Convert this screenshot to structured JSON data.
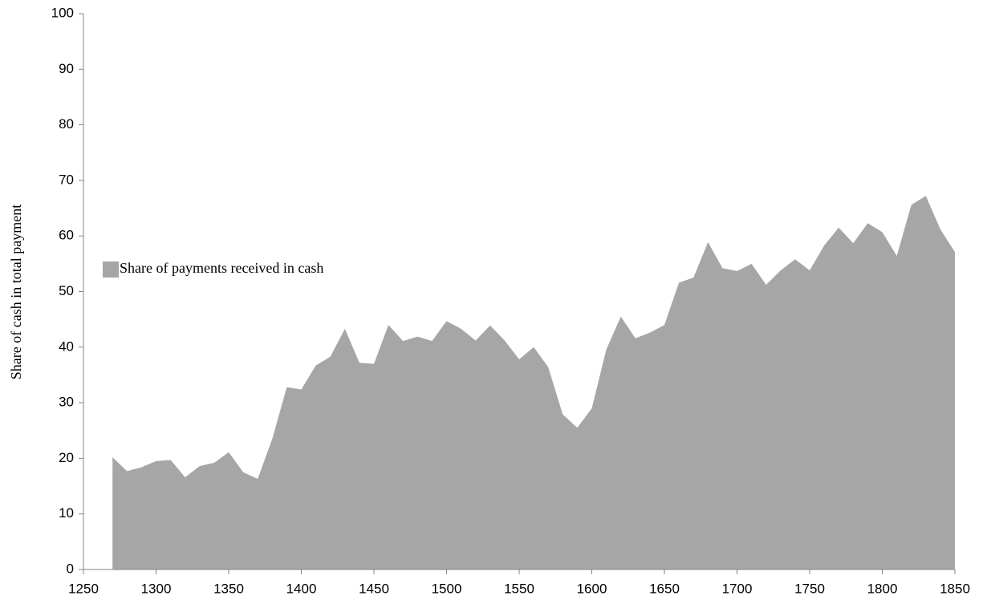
{
  "chart_data": {
    "type": "area",
    "y_label": "Share of cash in total payment",
    "x": [
      1270,
      1280,
      1290,
      1300,
      1310,
      1320,
      1330,
      1340,
      1350,
      1360,
      1370,
      1380,
      1390,
      1400,
      1410,
      1420,
      1430,
      1440,
      1450,
      1460,
      1470,
      1480,
      1490,
      1500,
      1510,
      1520,
      1530,
      1540,
      1550,
      1560,
      1570,
      1580,
      1590,
      1600,
      1610,
      1620,
      1630,
      1640,
      1650,
      1660,
      1670,
      1680,
      1690,
      1700,
      1710,
      1720,
      1730,
      1740,
      1750,
      1760,
      1770,
      1780,
      1790,
      1800,
      1810,
      1820,
      1830,
      1840,
      1850
    ],
    "series": [
      {
        "name": "Share of payments received in cash",
        "color": "#a6a6a6",
        "values": [
          20.2,
          17.7,
          18.4,
          19.5,
          19.7,
          16.6,
          18.6,
          19.2,
          21.1,
          17.5,
          16.3,
          23.5,
          32.8,
          32.4,
          36.7,
          38.3,
          43.3,
          37.2,
          37.0,
          44.0,
          41.1,
          41.9,
          41.1,
          44.7,
          43.3,
          41.2,
          43.9,
          41.2,
          37.8,
          40.0,
          36.4,
          27.9,
          25.5,
          29.0,
          39.6,
          45.5,
          41.6,
          42.6,
          44.0,
          51.6,
          52.5,
          58.9,
          54.2,
          53.7,
          55.0,
          51.2,
          53.8,
          55.8,
          53.8,
          58.3,
          61.5,
          58.7,
          62.3,
          60.7,
          56.4,
          65.6,
          67.2,
          61.2,
          57.1
        ]
      }
    ],
    "xlim": [
      1250,
      1850
    ],
    "xticks": [
      1250,
      1300,
      1350,
      1400,
      1450,
      1500,
      1550,
      1600,
      1650,
      1700,
      1750,
      1800,
      1850
    ],
    "ylim": [
      0,
      100
    ],
    "yticks": [
      0,
      10,
      20,
      30,
      40,
      50,
      60,
      70,
      80,
      90,
      100
    ],
    "legend": "left"
  }
}
